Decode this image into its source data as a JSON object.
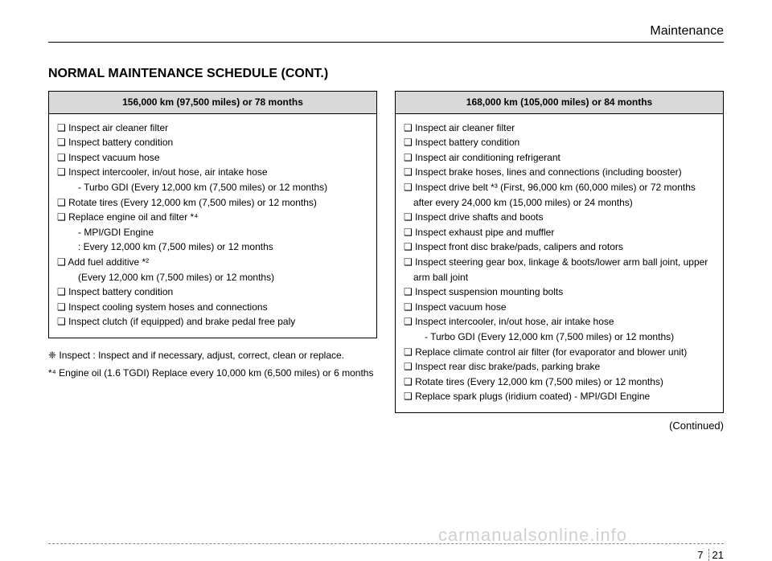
{
  "chapter": "Maintenance",
  "title": "NORMAL MAINTENANCE SCHEDULE (CONT.)",
  "left": {
    "header": "156,000 km (97,500 miles) or 78 months",
    "items": [
      "❑ Inspect air cleaner filter",
      "❑ Inspect battery condition",
      "❑ Inspect vacuum hose",
      "❑ Inspect intercooler, in/out hose, air intake hose",
      "  - Turbo GDI (Every 12,000 km (7,500 miles) or 12 months)",
      "❑ Rotate tires (Every 12,000 km (7,500 miles) or 12 months)",
      "❑ Replace engine oil and filter *⁴",
      "  - MPI/GDI Engine",
      "  : Every 12,000 km (7,500 miles) or 12 months",
      "❑ Add fuel additive *²",
      "  (Every 12,000 km (7,500 miles) or 12 months)",
      "❑ Inspect battery condition",
      "❑ Inspect cooling system hoses and connections",
      "❑ Inspect clutch (if equipped) and brake pedal free paly"
    ]
  },
  "notes": {
    "n1a": "❈ Inspect : Inspect and if necessary, adjust, correct, clean or replace.",
    "n2": "*⁴ Engine oil (1.6 TGDI) Replace every 10,000 km (6,500 miles) or 6 months"
  },
  "right": {
    "header": "168,000 km (105,000 miles) or 84 months",
    "items": [
      "❑ Inspect air cleaner filter",
      "❑ Inspect battery condition",
      "❑ Inspect air conditioning refrigerant",
      "❑ Inspect brake hoses, lines and connections (including booster)",
      "❑ Inspect drive belt *³ (First, 96,000 km (60,000 miles) or 72 months after every 24,000 km (15,000 miles) or 24 months)",
      "❑ Inspect drive shafts and boots",
      "❑ Inspect exhaust pipe and muffler",
      "❑ Inspect front disc brake/pads, calipers and rotors",
      "❑ Inspect steering gear box, linkage & boots/lower arm ball joint, upper arm ball joint",
      "❑ Inspect suspension mounting bolts",
      "❑ Inspect vacuum hose",
      "❑ Inspect intercooler, in/out hose, air intake hose",
      "  - Turbo GDI (Every 12,000 km (7,500 miles) or 12 months)",
      "❑ Replace climate control air filter (for evaporator and blower unit)",
      "❑ Inspect rear disc brake/pads, parking brake",
      "❑ Rotate tires (Every 12,000 km (7,500 miles) or 12 months)",
      "❑ Replace spark plugs (iridium coated) - MPI/GDI Engine"
    ]
  },
  "continued": "(Continued)",
  "pagenum": {
    "sec": "7",
    "pg": "21"
  },
  "watermark": "carmanualsonline.info"
}
